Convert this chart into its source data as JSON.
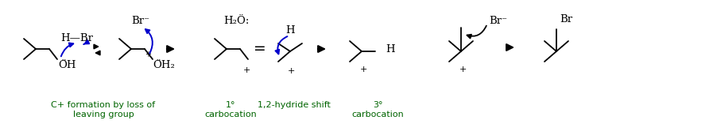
{
  "bg_color": "#ffffff",
  "figsize": [
    8.97,
    1.57
  ],
  "dpi": 100,
  "green_color": "#006400",
  "blue_color": "#0000cc",
  "black_color": "#000000",
  "label1": "C+ formation by loss of\nleaving group",
  "label2": "1°\ncarbocation",
  "label3": "1,2-hydride shift",
  "label4": "3°\ncarbocation"
}
